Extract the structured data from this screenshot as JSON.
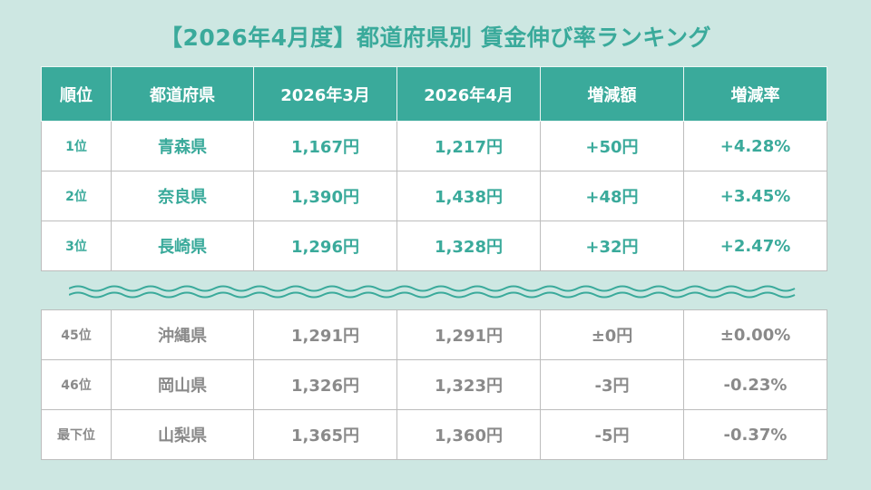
{
  "title": "【2026年4月度】都道府県別 賃金伸び率ランキング",
  "headers": [
    "順位",
    "都道府県",
    "2026年3月",
    "2026年4月",
    "増減額",
    "増減率"
  ],
  "top_rows": [
    {
      "rank": "1位",
      "pref": "青森県",
      "mar": "1,167円",
      "apr": "1,217円",
      "diff": "+50円",
      "rate": "+4.28%"
    },
    {
      "rank": "2位",
      "pref": "奈良県",
      "mar": "1,390円",
      "apr": "1,438円",
      "diff": "+48円",
      "rate": "+3.45%"
    },
    {
      "rank": "3位",
      "pref": "長崎県",
      "mar": "1,296円",
      "apr": "1,328円",
      "diff": "+32円",
      "rate": "+2.47%"
    }
  ],
  "bottom_rows": [
    {
      "rank": "45位",
      "pref": "沖縄県",
      "mar": "1,291円",
      "apr": "1,291円",
      "diff": "±0円",
      "rate": "±0.00%"
    },
    {
      "rank": "46位",
      "pref": "岡山県",
      "mar": "1,326円",
      "apr": "1,323円",
      "diff": "-3円",
      "rate": "-0.23%"
    },
    {
      "rank": "最下位",
      "pref": "山梨県",
      "mar": "1,365円",
      "apr": "1,360円",
      "diff": "-5円",
      "rate": "-0.37%"
    }
  ],
  "colors": {
    "accent": "#3aaa9b",
    "background": "#cde7e2",
    "muted_text": "#8a8a8a"
  }
}
